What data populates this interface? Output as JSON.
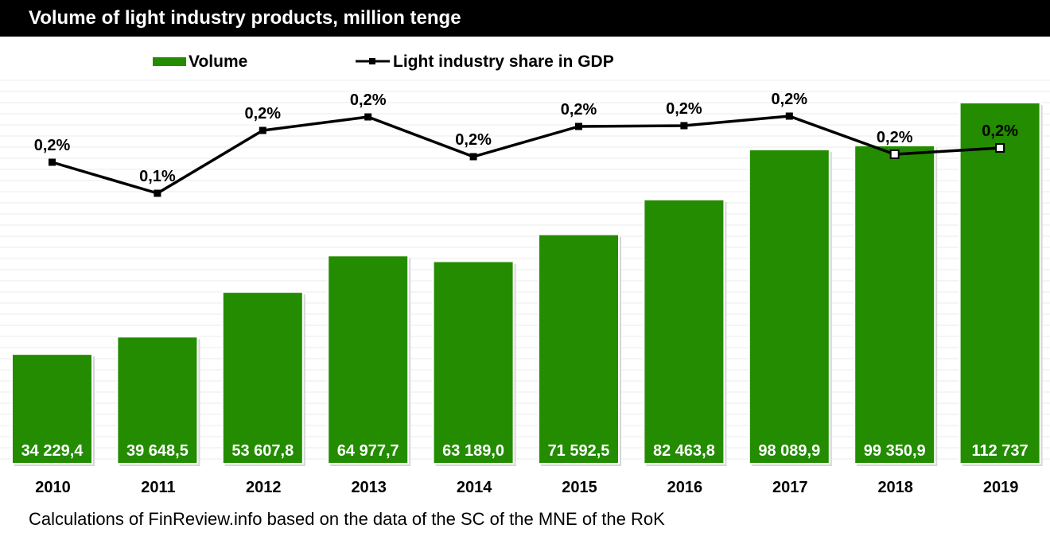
{
  "title": "Volume of light industry products, million tenge",
  "source": "Calculations of FinReview.info based on the data of the SC of the MNE of the RoK",
  "chart_data": {
    "type": "bar",
    "categories": [
      "2010",
      "2011",
      "2012",
      "2013",
      "2014",
      "2015",
      "2016",
      "2017",
      "2018",
      "2019"
    ],
    "series": [
      {
        "name": "Volume",
        "type": "bar",
        "color": "#238c00",
        "values": [
          34229.4,
          39648.5,
          53607.8,
          64977.7,
          63189.0,
          71592.5,
          82463.8,
          98089.9,
          99350.9,
          112737
        ],
        "labels": [
          "34 229,4",
          "39 648,5",
          "53 607,8",
          "64 977,7",
          "63 189,0",
          "71 592,5",
          "82 463,8",
          "98 089,9",
          "99 350,9",
          "112 737"
        ]
      },
      {
        "name": "Light industry share in GDP",
        "type": "line",
        "color": "#000000",
        "values": [
          0.2,
          0.1,
          0.2,
          0.2,
          0.2,
          0.2,
          0.2,
          0.2,
          0.2,
          0.2
        ],
        "labels": [
          "0,2%",
          "0,1%",
          "0,2%",
          "0,2%",
          "0,2%",
          "0,2%",
          "0,2%",
          "0,2%",
          "0,2%",
          "0,2%"
        ]
      }
    ],
    "legend": "top-center",
    "grid": true
  }
}
